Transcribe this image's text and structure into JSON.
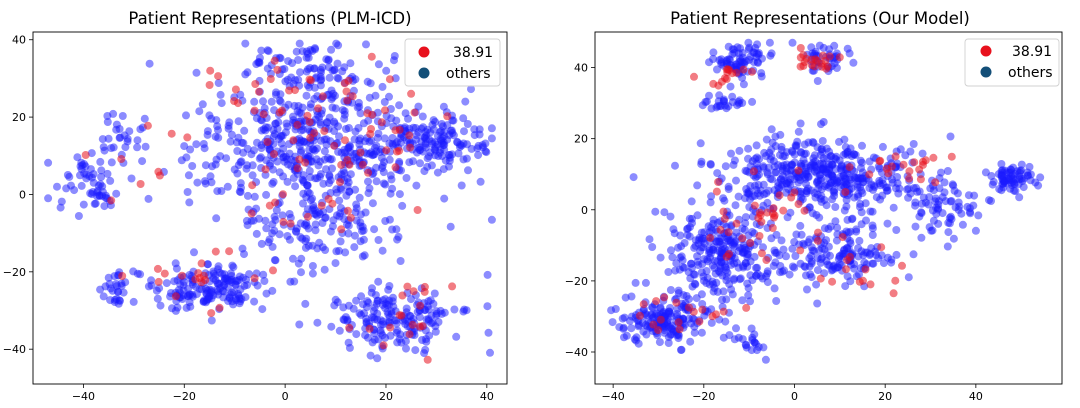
{
  "chart_data": [
    {
      "type": "scatter",
      "title": "Patient Representations (PLM-ICD)",
      "xlabel": "",
      "ylabel": "",
      "xlim": [
        -50,
        44
      ],
      "ylim": [
        -49,
        42
      ],
      "xticks": [
        -40,
        -20,
        0,
        20,
        40
      ],
      "yticks": [
        -40,
        -20,
        0,
        20,
        40
      ],
      "xtick_labels": [
        "−40",
        "−20",
        "0",
        "20",
        "40"
      ],
      "ytick_labels": [
        "−40",
        "−20",
        "0",
        "20",
        "40"
      ],
      "grid": false,
      "legend": "top-right",
      "series": [
        {
          "name": "38.91",
          "color": "#e8111d",
          "clusters": [
            {
              "cx": 12,
              "cy": 15,
              "sx": 18,
              "sy": 14,
              "n": 50
            },
            {
              "cx": -5,
              "cy": 28,
              "sx": 12,
              "sy": 8,
              "n": 20
            },
            {
              "cx": 25,
              "cy": -30,
              "sx": 10,
              "sy": 8,
              "n": 18
            },
            {
              "cx": -15,
              "cy": -22,
              "sx": 12,
              "sy": 6,
              "n": 18
            },
            {
              "cx": -30,
              "cy": 8,
              "sx": 8,
              "sy": 8,
              "n": 8
            },
            {
              "cx": 5,
              "cy": -5,
              "sx": 12,
              "sy": 8,
              "n": 14
            }
          ]
        },
        {
          "name": "others",
          "color": "#1a1aff",
          "clusters": [
            {
              "cx": 5,
              "cy": 12,
              "sx": 22,
              "sy": 15,
              "n": 520
            },
            {
              "cx": -38,
              "cy": 3,
              "sx": 5,
              "sy": 6,
              "n": 55
            },
            {
              "cx": -32,
              "cy": 14,
              "sx": 4,
              "sy": 5,
              "n": 25
            },
            {
              "cx": 30,
              "cy": 14,
              "sx": 9,
              "sy": 6,
              "n": 120
            },
            {
              "cx": -15,
              "cy": -24,
              "sx": 10,
              "sy": 6,
              "n": 160
            },
            {
              "cx": 22,
              "cy": -32,
              "sx": 11,
              "sy": 7,
              "n": 180
            },
            {
              "cx": -33,
              "cy": -25,
              "sx": 3,
              "sy": 4,
              "n": 28
            },
            {
              "cx": 5,
              "cy": -8,
              "sx": 14,
              "sy": 9,
              "n": 120
            },
            {
              "cx": 5,
              "cy": 33,
              "sx": 10,
              "sy": 5,
              "n": 70
            }
          ]
        }
      ]
    },
    {
      "type": "scatter",
      "title": "Patient Representations (Our Model)",
      "xlabel": "",
      "ylabel": "",
      "xlim": [
        -44,
        59
      ],
      "ylim": [
        -49,
        50
      ],
      "xticks": [
        -40,
        -20,
        0,
        20,
        40
      ],
      "yticks": [
        -40,
        -20,
        0,
        20,
        40
      ],
      "xtick_labels": [
        "−40",
        "−20",
        "0",
        "20",
        "40"
      ],
      "ytick_labels": [
        "−40",
        "−20",
        "0",
        "20",
        "40"
      ],
      "grid": false,
      "legend": "top-right",
      "series": [
        {
          "name": "38.91",
          "color": "#e8111d",
          "clusters": [
            {
              "cx": 5,
              "cy": 42,
              "sx": 5,
              "sy": 3,
              "n": 20
            },
            {
              "cx": -15,
              "cy": 38,
              "sx": 5,
              "sy": 4,
              "n": 14
            },
            {
              "cx": 25,
              "cy": 12,
              "sx": 10,
              "sy": 4,
              "n": 20
            },
            {
              "cx": -5,
              "cy": -5,
              "sx": 15,
              "sy": 10,
              "n": 40
            },
            {
              "cx": -25,
              "cy": -30,
              "sx": 10,
              "sy": 6,
              "n": 18
            },
            {
              "cx": 15,
              "cy": -18,
              "sx": 8,
              "sy": 6,
              "n": 12
            }
          ]
        },
        {
          "name": "others",
          "color": "#1a1aff",
          "clusters": [
            {
              "cx": -12,
              "cy": 42,
              "sx": 6,
              "sy": 4,
              "n": 75
            },
            {
              "cx": 6,
              "cy": 42,
              "sx": 5,
              "sy": 3,
              "n": 40
            },
            {
              "cx": -16,
              "cy": 30,
              "sx": 4,
              "sy": 2,
              "n": 25
            },
            {
              "cx": 5,
              "cy": 10,
              "sx": 18,
              "sy": 8,
              "n": 420
            },
            {
              "cx": 48,
              "cy": 9,
              "sx": 4,
              "sy": 3,
              "n": 70
            },
            {
              "cx": -15,
              "cy": -12,
              "sx": 12,
              "sy": 10,
              "n": 260
            },
            {
              "cx": -28,
              "cy": -30,
              "sx": 8,
              "sy": 6,
              "n": 180
            },
            {
              "cx": 10,
              "cy": -12,
              "sx": 12,
              "sy": 8,
              "n": 160
            },
            {
              "cx": 32,
              "cy": 2,
              "sx": 8,
              "sy": 8,
              "n": 70
            },
            {
              "cx": -10,
              "cy": -38,
              "sx": 4,
              "sy": 3,
              "n": 20
            }
          ]
        }
      ]
    }
  ]
}
